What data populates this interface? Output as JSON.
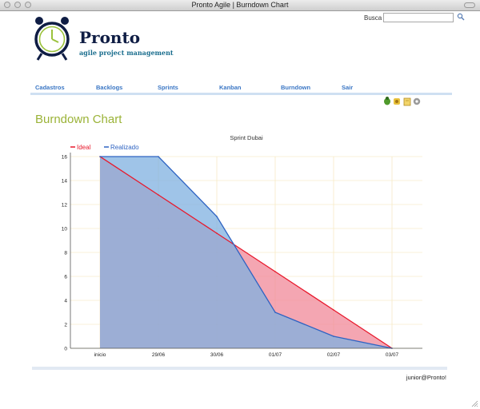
{
  "window": {
    "title": "Pronto Agile | Burndown Chart"
  },
  "search": {
    "label": "Busca",
    "value": "",
    "icon": "search-icon"
  },
  "brand": {
    "name": "Pronto",
    "tagline": "agile project management"
  },
  "nav": {
    "items": [
      {
        "label": "Cadastros"
      },
      {
        "label": "Backlogs"
      },
      {
        "label": "Sprints"
      },
      {
        "label": "Kanban"
      },
      {
        "label": "Burndown"
      },
      {
        "label": "Sair"
      }
    ]
  },
  "toolbar": {
    "icons": [
      "bug-icon",
      "wrench-icon",
      "document-icon",
      "gear-icon"
    ]
  },
  "page": {
    "title": "Burndown Chart"
  },
  "chart_data": {
    "type": "area",
    "title": "Sprint Dubai",
    "categories": [
      "inicio",
      "29/06",
      "30/06",
      "01/07",
      "02/07",
      "03/07"
    ],
    "ylim": [
      0,
      16
    ],
    "yticks": [
      0,
      2,
      4,
      6,
      8,
      10,
      12,
      14,
      16
    ],
    "grid": true,
    "legend_placement": "top-left",
    "series": [
      {
        "name": "Ideal",
        "values": [
          16,
          12.8,
          9.6,
          6.4,
          3.2,
          0
        ],
        "color": "#e8192c",
        "fill": "#f08898"
      },
      {
        "name": "Realizado",
        "values": [
          16,
          16,
          11,
          3,
          1,
          0
        ],
        "color": "#2e63c2",
        "fill": "#7fb0e0"
      }
    ]
  },
  "footer": {
    "user": "junior@Pronto!"
  }
}
